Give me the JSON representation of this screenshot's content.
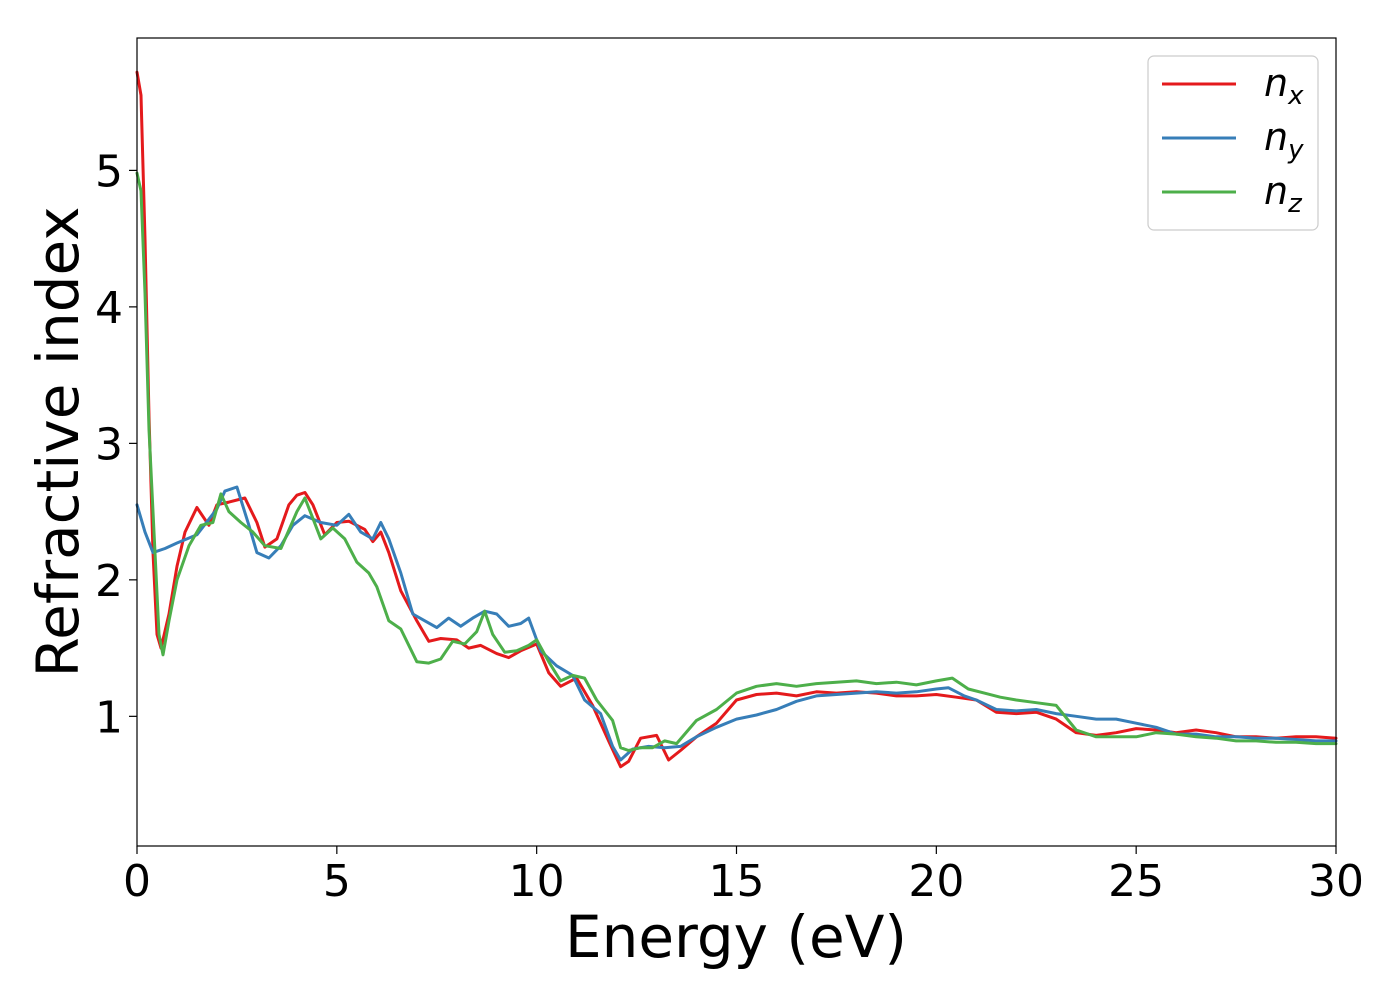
{
  "chart_data": {
    "type": "line",
    "title": "",
    "xlabel": "Energy (eV)",
    "ylabel": "Refractive index",
    "xlim": [
      0,
      30
    ],
    "ylim": [
      0.05,
      5.97
    ],
    "x_ticks": [
      0,
      5,
      10,
      15,
      20,
      25,
      30
    ],
    "y_ticks": [
      1,
      2,
      3,
      4,
      5
    ],
    "grid": false,
    "legend_position": "top-right",
    "series": [
      {
        "name": "n",
        "subscript": "x",
        "color": "#e41a1c",
        "points": [
          [
            0,
            5.72
          ],
          [
            0.1,
            5.55
          ],
          [
            0.2,
            4.5
          ],
          [
            0.3,
            3.2
          ],
          [
            0.4,
            2.2
          ],
          [
            0.5,
            1.6
          ],
          [
            0.6,
            1.5
          ],
          [
            0.8,
            1.75
          ],
          [
            1.0,
            2.1
          ],
          [
            1.2,
            2.35
          ],
          [
            1.5,
            2.53
          ],
          [
            1.8,
            2.4
          ],
          [
            2.0,
            2.55
          ],
          [
            2.3,
            2.57
          ],
          [
            2.7,
            2.6
          ],
          [
            3.0,
            2.42
          ],
          [
            3.2,
            2.24
          ],
          [
            3.5,
            2.3
          ],
          [
            3.8,
            2.55
          ],
          [
            4.0,
            2.62
          ],
          [
            4.2,
            2.64
          ],
          [
            4.4,
            2.55
          ],
          [
            4.7,
            2.33
          ],
          [
            5.0,
            2.42
          ],
          [
            5.3,
            2.43
          ],
          [
            5.7,
            2.37
          ],
          [
            5.9,
            2.28
          ],
          [
            6.1,
            2.35
          ],
          [
            6.3,
            2.2
          ],
          [
            6.6,
            1.92
          ],
          [
            7.0,
            1.7
          ],
          [
            7.3,
            1.55
          ],
          [
            7.6,
            1.57
          ],
          [
            8.0,
            1.56
          ],
          [
            8.3,
            1.5
          ],
          [
            8.6,
            1.52
          ],
          [
            9.0,
            1.46
          ],
          [
            9.3,
            1.43
          ],
          [
            9.6,
            1.48
          ],
          [
            10.0,
            1.53
          ],
          [
            10.3,
            1.32
          ],
          [
            10.6,
            1.22
          ],
          [
            11.0,
            1.28
          ],
          [
            11.4,
            1.08
          ],
          [
            11.8,
            0.82
          ],
          [
            12.1,
            0.63
          ],
          [
            12.3,
            0.67
          ],
          [
            12.6,
            0.84
          ],
          [
            13.0,
            0.86
          ],
          [
            13.3,
            0.68
          ],
          [
            13.6,
            0.75
          ],
          [
            14.0,
            0.85
          ],
          [
            14.5,
            0.95
          ],
          [
            15.0,
            1.12
          ],
          [
            15.5,
            1.16
          ],
          [
            16.0,
            1.17
          ],
          [
            16.5,
            1.15
          ],
          [
            17.0,
            1.18
          ],
          [
            17.5,
            1.17
          ],
          [
            18.0,
            1.18
          ],
          [
            18.5,
            1.17
          ],
          [
            19.0,
            1.15
          ],
          [
            19.5,
            1.15
          ],
          [
            20.0,
            1.16
          ],
          [
            20.5,
            1.14
          ],
          [
            21.0,
            1.12
          ],
          [
            21.5,
            1.03
          ],
          [
            22.0,
            1.02
          ],
          [
            22.5,
            1.03
          ],
          [
            23.0,
            0.98
          ],
          [
            23.5,
            0.88
          ],
          [
            24.0,
            0.86
          ],
          [
            24.5,
            0.88
          ],
          [
            25.0,
            0.91
          ],
          [
            25.5,
            0.9
          ],
          [
            26.0,
            0.88
          ],
          [
            26.5,
            0.9
          ],
          [
            27.0,
            0.88
          ],
          [
            27.5,
            0.85
          ],
          [
            28.0,
            0.85
          ],
          [
            28.5,
            0.84
          ],
          [
            29.0,
            0.85
          ],
          [
            29.5,
            0.85
          ],
          [
            30.0,
            0.84
          ]
        ]
      },
      {
        "name": "n",
        "subscript": "y",
        "color": "#377eb8",
        "points": [
          [
            0,
            2.55
          ],
          [
            0.2,
            2.35
          ],
          [
            0.4,
            2.2
          ],
          [
            0.7,
            2.23
          ],
          [
            1.0,
            2.27
          ],
          [
            1.5,
            2.33
          ],
          [
            2.0,
            2.52
          ],
          [
            2.2,
            2.65
          ],
          [
            2.5,
            2.68
          ],
          [
            2.8,
            2.4
          ],
          [
            3.0,
            2.2
          ],
          [
            3.3,
            2.16
          ],
          [
            3.6,
            2.25
          ],
          [
            3.9,
            2.4
          ],
          [
            4.2,
            2.47
          ],
          [
            4.6,
            2.42
          ],
          [
            5.0,
            2.4
          ],
          [
            5.3,
            2.48
          ],
          [
            5.6,
            2.35
          ],
          [
            5.9,
            2.3
          ],
          [
            6.1,
            2.42
          ],
          [
            6.3,
            2.3
          ],
          [
            6.6,
            2.05
          ],
          [
            6.9,
            1.75
          ],
          [
            7.2,
            1.7
          ],
          [
            7.5,
            1.65
          ],
          [
            7.8,
            1.72
          ],
          [
            8.1,
            1.66
          ],
          [
            8.4,
            1.72
          ],
          [
            8.7,
            1.77
          ],
          [
            9.0,
            1.75
          ],
          [
            9.3,
            1.66
          ],
          [
            9.6,
            1.68
          ],
          [
            9.8,
            1.72
          ],
          [
            10.1,
            1.48
          ],
          [
            10.5,
            1.37
          ],
          [
            10.9,
            1.3
          ],
          [
            11.2,
            1.12
          ],
          [
            11.6,
            1.02
          ],
          [
            11.9,
            0.78
          ],
          [
            12.1,
            0.68
          ],
          [
            12.4,
            0.76
          ],
          [
            12.8,
            0.78
          ],
          [
            13.2,
            0.77
          ],
          [
            13.6,
            0.78
          ],
          [
            14.0,
            0.85
          ],
          [
            14.5,
            0.92
          ],
          [
            15.0,
            0.98
          ],
          [
            15.5,
            1.01
          ],
          [
            16.0,
            1.05
          ],
          [
            16.5,
            1.11
          ],
          [
            17.0,
            1.15
          ],
          [
            17.5,
            1.16
          ],
          [
            18.0,
            1.17
          ],
          [
            18.5,
            1.18
          ],
          [
            19.0,
            1.17
          ],
          [
            19.5,
            1.18
          ],
          [
            20.0,
            1.2
          ],
          [
            20.3,
            1.21
          ],
          [
            20.7,
            1.15
          ],
          [
            21.0,
            1.12
          ],
          [
            21.5,
            1.05
          ],
          [
            22.0,
            1.04
          ],
          [
            22.5,
            1.05
          ],
          [
            23.0,
            1.02
          ],
          [
            23.5,
            1.0
          ],
          [
            24.0,
            0.98
          ],
          [
            24.5,
            0.98
          ],
          [
            25.0,
            0.95
          ],
          [
            25.5,
            0.92
          ],
          [
            26.0,
            0.87
          ],
          [
            26.5,
            0.87
          ],
          [
            27.0,
            0.85
          ],
          [
            27.5,
            0.85
          ],
          [
            28.0,
            0.84
          ],
          [
            28.5,
            0.84
          ],
          [
            29.0,
            0.83
          ],
          [
            29.5,
            0.82
          ],
          [
            30.0,
            0.82
          ]
        ]
      },
      {
        "name": "n",
        "subscript": "z",
        "color": "#4daf4a",
        "points": [
          [
            0,
            4.98
          ],
          [
            0.1,
            4.85
          ],
          [
            0.2,
            4.1
          ],
          [
            0.3,
            3.1
          ],
          [
            0.45,
            2.2
          ],
          [
            0.55,
            1.6
          ],
          [
            0.65,
            1.45
          ],
          [
            0.8,
            1.7
          ],
          [
            1.0,
            2.0
          ],
          [
            1.3,
            2.25
          ],
          [
            1.6,
            2.4
          ],
          [
            1.9,
            2.42
          ],
          [
            2.1,
            2.63
          ],
          [
            2.3,
            2.5
          ],
          [
            2.6,
            2.42
          ],
          [
            2.9,
            2.35
          ],
          [
            3.2,
            2.25
          ],
          [
            3.6,
            2.23
          ],
          [
            4.0,
            2.5
          ],
          [
            4.2,
            2.6
          ],
          [
            4.4,
            2.45
          ],
          [
            4.6,
            2.3
          ],
          [
            4.9,
            2.38
          ],
          [
            5.2,
            2.3
          ],
          [
            5.5,
            2.13
          ],
          [
            5.8,
            2.05
          ],
          [
            6.0,
            1.95
          ],
          [
            6.3,
            1.7
          ],
          [
            6.6,
            1.64
          ],
          [
            7.0,
            1.4
          ],
          [
            7.3,
            1.39
          ],
          [
            7.6,
            1.42
          ],
          [
            7.9,
            1.55
          ],
          [
            8.2,
            1.53
          ],
          [
            8.5,
            1.62
          ],
          [
            8.7,
            1.77
          ],
          [
            8.9,
            1.6
          ],
          [
            9.2,
            1.47
          ],
          [
            9.5,
            1.48
          ],
          [
            9.8,
            1.52
          ],
          [
            10.0,
            1.56
          ],
          [
            10.3,
            1.4
          ],
          [
            10.6,
            1.26
          ],
          [
            10.9,
            1.3
          ],
          [
            11.2,
            1.28
          ],
          [
            11.5,
            1.12
          ],
          [
            11.9,
            0.97
          ],
          [
            12.1,
            0.77
          ],
          [
            12.3,
            0.75
          ],
          [
            12.6,
            0.77
          ],
          [
            12.9,
            0.77
          ],
          [
            13.2,
            0.82
          ],
          [
            13.5,
            0.8
          ],
          [
            14.0,
            0.97
          ],
          [
            14.5,
            1.05
          ],
          [
            15.0,
            1.17
          ],
          [
            15.5,
            1.22
          ],
          [
            16.0,
            1.24
          ],
          [
            16.5,
            1.22
          ],
          [
            17.0,
            1.24
          ],
          [
            17.5,
            1.25
          ],
          [
            18.0,
            1.26
          ],
          [
            18.5,
            1.24
          ],
          [
            19.0,
            1.25
          ],
          [
            19.5,
            1.23
          ],
          [
            20.0,
            1.26
          ],
          [
            20.4,
            1.28
          ],
          [
            20.8,
            1.2
          ],
          [
            21.2,
            1.17
          ],
          [
            21.6,
            1.14
          ],
          [
            22.0,
            1.12
          ],
          [
            22.5,
            1.1
          ],
          [
            23.0,
            1.08
          ],
          [
            23.5,
            0.9
          ],
          [
            24.0,
            0.85
          ],
          [
            24.5,
            0.85
          ],
          [
            25.0,
            0.85
          ],
          [
            25.5,
            0.88
          ],
          [
            26.0,
            0.87
          ],
          [
            26.5,
            0.85
          ],
          [
            27.0,
            0.84
          ],
          [
            27.5,
            0.82
          ],
          [
            28.0,
            0.82
          ],
          [
            28.5,
            0.81
          ],
          [
            29.0,
            0.81
          ],
          [
            29.5,
            0.8
          ],
          [
            30.0,
            0.8
          ]
        ]
      }
    ]
  }
}
